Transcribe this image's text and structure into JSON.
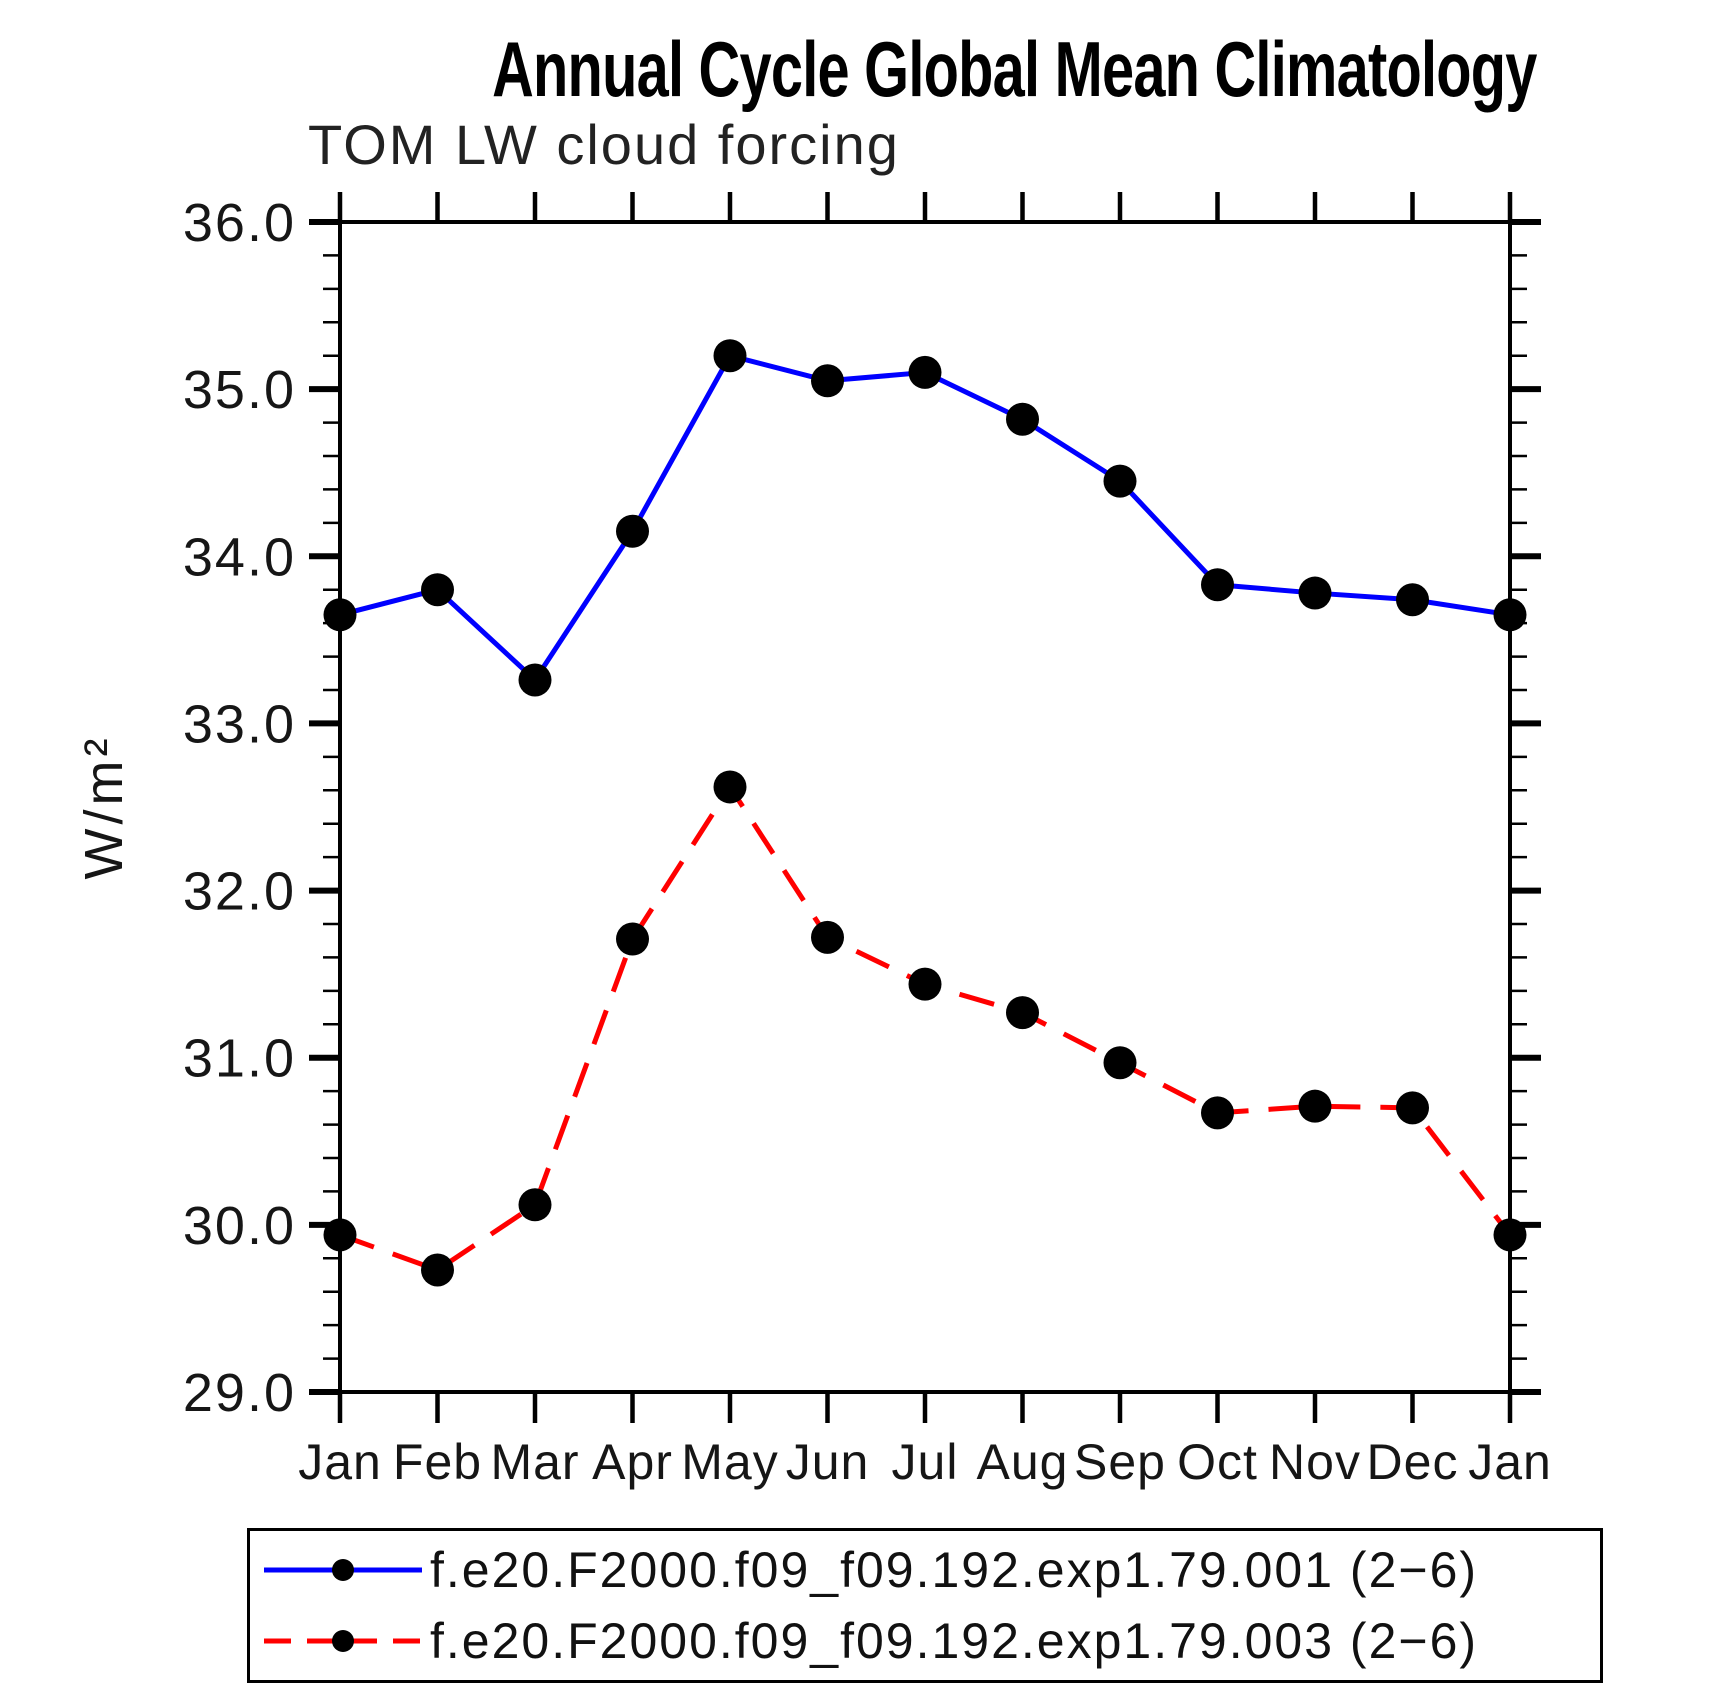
{
  "page": {
    "title": "Annual Cycle Global Mean Climatology",
    "subtitle": "TOM LW cloud forcing"
  },
  "chart_data": {
    "type": "line",
    "title": "Annual Cycle Global Mean Climatology",
    "subtitle": "TOM LW cloud forcing",
    "xlabel": "",
    "ylabel": "W/m²",
    "categories": [
      "Jan",
      "Feb",
      "Mar",
      "Apr",
      "May",
      "Jun",
      "Jul",
      "Aug",
      "Sep",
      "Oct",
      "Nov",
      "Dec",
      "Jan"
    ],
    "ylim": [
      29.0,
      36.0
    ],
    "ytick_interval": 1.0,
    "yminor_interval": 0.2,
    "ytick_labels": [
      "29.0",
      "30.0",
      "31.0",
      "32.0",
      "33.0",
      "34.0",
      "35.0",
      "36.0"
    ],
    "grid": false,
    "legend_position": "bottom",
    "marker": {
      "shape": "circle",
      "color": "#000000",
      "radius": 16.5
    },
    "axis_color": "#000000",
    "series": [
      {
        "name": "f.e20.F2000.f09_f09.192.exp1.79.001 (2−6)",
        "color": "#0000FF",
        "line_style": "solid",
        "values": [
          33.65,
          33.8,
          33.26,
          34.15,
          35.2,
          35.05,
          35.1,
          34.82,
          34.45,
          33.83,
          33.78,
          33.74,
          33.65
        ]
      },
      {
        "name": "f.e20.F2000.f09_f09.192.exp1.79.003 (2−6)",
        "color": "#FF0000",
        "line_style": "dashed",
        "values": [
          29.94,
          29.73,
          30.12,
          31.71,
          32.62,
          31.72,
          31.44,
          31.27,
          30.97,
          30.67,
          30.71,
          30.7,
          29.94
        ]
      }
    ]
  }
}
